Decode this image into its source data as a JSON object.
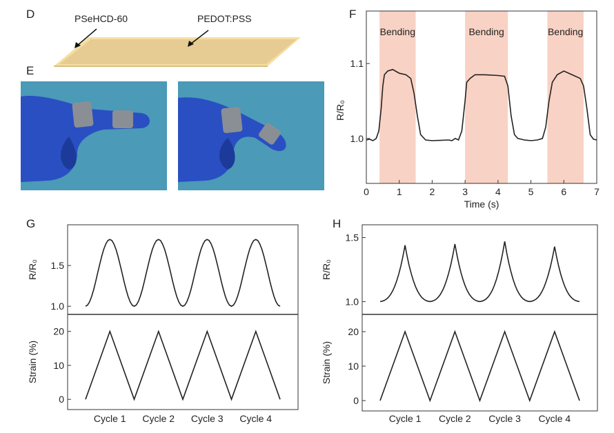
{
  "panels": {
    "D": {
      "label": "D",
      "annotations": [
        "PSeHCD-60",
        "PEDOT:PSS"
      ]
    },
    "E": {
      "label": "E",
      "photos": [
        "finger-straight-photo",
        "finger-bent-photo"
      ]
    }
  },
  "colors": {
    "bending_band": "#f8d2c4",
    "film_top": "#e6cc93",
    "film_edge": "#f6dfa2",
    "photo_bg": "#4a9ab8",
    "glove": "#2a4fc2",
    "sensor": "#8a8f96",
    "line": "#222222"
  },
  "chart_data": [
    {
      "panel": "F",
      "type": "line",
      "xlabel": "Time (s)",
      "ylabel": "R/R₀",
      "xlim": [
        0,
        7
      ],
      "ylim": [
        0.94,
        1.17
      ],
      "xticks": [
        0,
        1,
        2,
        3,
        4,
        5,
        6,
        7
      ],
      "yticks": [
        1.0,
        1.1
      ],
      "bands": [
        {
          "label": "Bending",
          "x0": 0.4,
          "x1": 1.5
        },
        {
          "label": "Bending",
          "x0": 3.0,
          "x1": 4.3
        },
        {
          "label": "Bending",
          "x0": 5.5,
          "x1": 6.6
        }
      ],
      "series": [
        {
          "x": [
            0.0,
            0.1,
            0.2,
            0.3,
            0.38,
            0.45,
            0.5,
            0.55,
            0.65,
            0.8,
            1.0,
            1.2,
            1.35,
            1.45,
            1.55,
            1.65,
            1.8,
            2.0,
            2.5,
            2.6,
            2.7,
            2.8,
            2.9,
            3.0,
            3.05,
            3.15,
            3.3,
            3.6,
            4.0,
            4.2,
            4.3,
            4.4,
            4.5,
            4.6,
            4.8,
            5.0,
            5.2,
            5.35,
            5.45,
            5.55,
            5.65,
            5.8,
            6.0,
            6.25,
            6.5,
            6.6,
            6.7,
            6.8,
            6.9,
            7.0
          ],
          "y": [
            0.998,
            0.999,
            0.997,
            1.0,
            1.01,
            1.04,
            1.07,
            1.085,
            1.09,
            1.092,
            1.087,
            1.085,
            1.08,
            1.06,
            1.03,
            1.005,
            0.998,
            0.997,
            0.998,
            0.997,
            1.0,
            0.998,
            1.01,
            1.05,
            1.075,
            1.08,
            1.085,
            1.085,
            1.084,
            1.083,
            1.07,
            1.03,
            1.005,
            1.0,
            0.998,
            0.997,
            0.998,
            1.0,
            1.015,
            1.05,
            1.075,
            1.085,
            1.09,
            1.085,
            1.08,
            1.07,
            1.04,
            1.005,
            0.999,
            0.998
          ]
        }
      ]
    },
    {
      "panel": "G",
      "type": "line",
      "categories": [
        "Cycle 1",
        "Cycle 2",
        "Cycle 3",
        "Cycle 4"
      ],
      "top": {
        "ylabel": "R/R₀",
        "ylim": [
          0.9,
          2.0
        ],
        "yticks": [
          1.0,
          1.5
        ],
        "peaks": [
          1.82,
          1.82,
          1.82,
          1.82
        ],
        "base": 1.0
      },
      "bottom": {
        "ylabel": "Strain (%)",
        "ylim": [
          -3,
          25
        ],
        "yticks": [
          0,
          10,
          20
        ],
        "peak": 20,
        "base": 0
      }
    },
    {
      "panel": "H",
      "type": "line",
      "categories": [
        "Cycle 1",
        "Cycle 2",
        "Cycle 3",
        "Cycle 4"
      ],
      "top": {
        "ylabel": "R/R₀",
        "ylim": [
          0.9,
          1.6
        ],
        "yticks": [
          1.0,
          1.5
        ],
        "peaks": [
          1.44,
          1.45,
          1.47,
          1.43
        ],
        "base": 1.0
      },
      "bottom": {
        "ylabel": "Strain (%)",
        "ylim": [
          -3,
          25
        ],
        "yticks": [
          0,
          10,
          20
        ],
        "peak": 20,
        "base": 0
      }
    }
  ]
}
